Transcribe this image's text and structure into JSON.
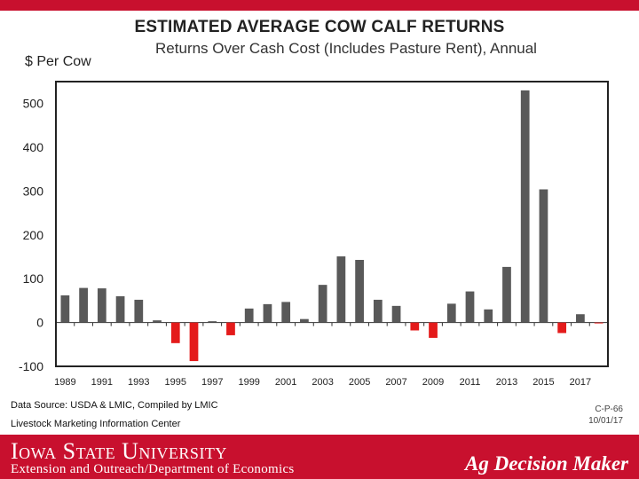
{
  "header": {
    "title": "ESTIMATED AVERAGE COW CALF RETURNS",
    "subtitle": "Returns Over Cash Cost (Includes Pasture Rent), Annual"
  },
  "chart_data": {
    "type": "bar",
    "title": "ESTIMATED AVERAGE COW CALF RETURNS",
    "subtitle": "Returns Over Cash Cost (Includes Pasture Rent), Annual",
    "ylabel": "$ Per Cow",
    "xlabel": "",
    "ylim": [
      -100,
      550
    ],
    "yticks": [
      -100,
      0,
      100,
      200,
      300,
      400,
      500
    ],
    "x": [
      1989,
      1990,
      1991,
      1992,
      1993,
      1994,
      1995,
      1996,
      1997,
      1998,
      1999,
      2000,
      2001,
      2002,
      2003,
      2004,
      2005,
      2006,
      2007,
      2008,
      2009,
      2010,
      2011,
      2012,
      2013,
      2014,
      2015,
      2016,
      2017,
      2018
    ],
    "xtick_labels": [
      "1989",
      "1991",
      "1993",
      "1995",
      "1997",
      "1999",
      "2001",
      "2003",
      "2005",
      "2007",
      "2009",
      "2011",
      "2013",
      "2015",
      "2017"
    ],
    "values": [
      62,
      79,
      78,
      60,
      52,
      5,
      -47,
      -88,
      3,
      -29,
      32,
      42,
      47,
      8,
      86,
      151,
      143,
      52,
      38,
      -18,
      -35,
      43,
      71,
      30,
      127,
      530,
      304,
      -24,
      19,
      -2
    ],
    "positive_color": "#595959",
    "negative_color": "#e41b1b",
    "grid": false,
    "legend": "none"
  },
  "footer": {
    "source": "Data Source:  USDA & LMIC, Compiled by LMIC",
    "org": "Livestock Marketing Information Center",
    "code_line1": "C-P-66",
    "code_line2": "10/01/17",
    "university": "Iowa State University",
    "department": "Extension and Outreach/Department of Economics",
    "brand": "Ag Decision Maker"
  }
}
